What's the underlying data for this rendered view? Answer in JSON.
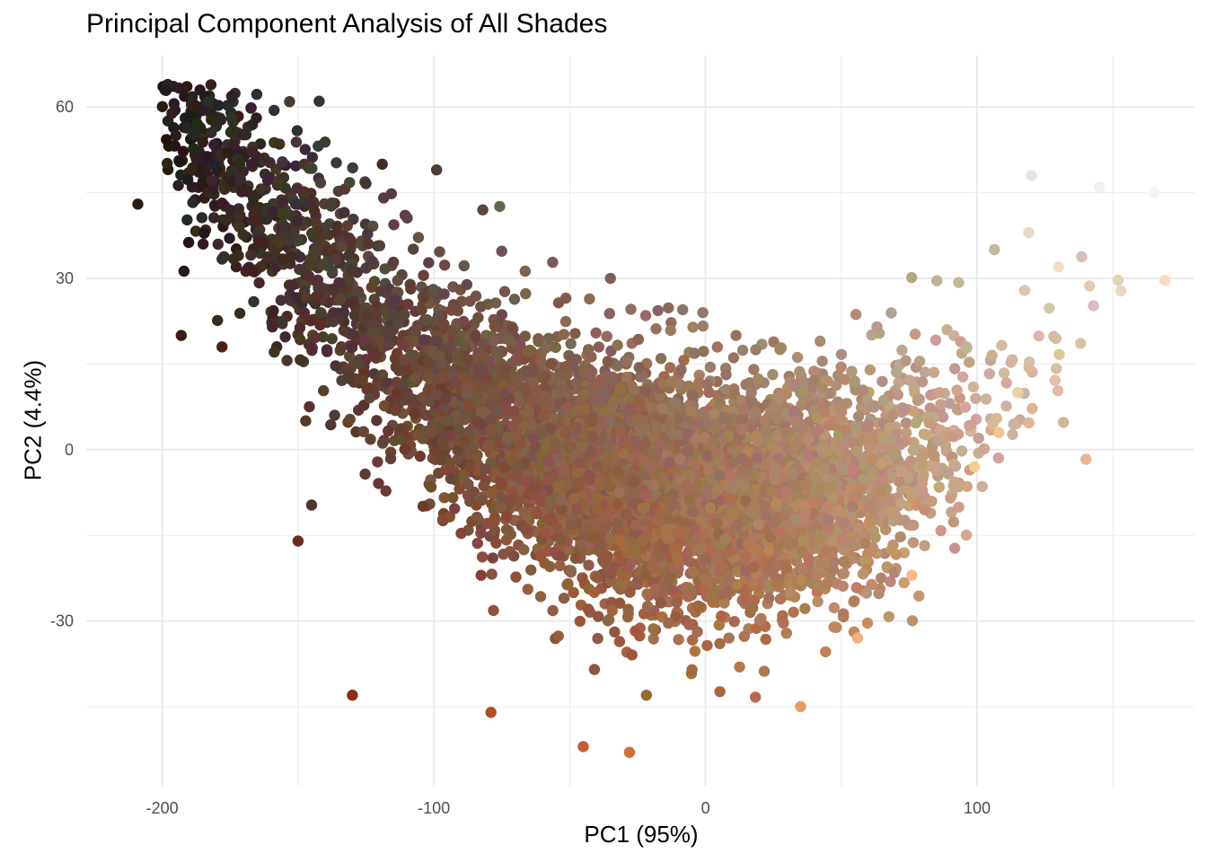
{
  "chart_data": {
    "type": "scatter",
    "title": "Principal Component Analysis of All Shades",
    "xlabel": "PC1 (95%)",
    "ylabel": "PC2 (4.4%)",
    "xlim": [
      -228,
      180
    ],
    "ylim": [
      -59,
      69
    ],
    "x_ticks": [
      -200,
      -100,
      0,
      100
    ],
    "x_tick_labels": [
      "-200",
      "-100",
      "0",
      "100"
    ],
    "y_ticks": [
      -30,
      0,
      30,
      60
    ],
    "y_tick_labels": [
      "-30",
      "0",
      "30",
      "60"
    ],
    "grid": true,
    "legend": "none",
    "point_count_estimate": 7000,
    "representative_points": [
      {
        "x": -199,
        "y": 63,
        "color": "#221b19"
      },
      {
        "x": -209,
        "y": 43,
        "color": "#2a1d18"
      },
      {
        "x": -195,
        "y": 55,
        "color": "#2b1c17"
      },
      {
        "x": -176,
        "y": 52,
        "color": "#2e1e18"
      },
      {
        "x": -119,
        "y": 50,
        "color": "#3f2d26"
      },
      {
        "x": -99,
        "y": 49,
        "color": "#4c3b37"
      },
      {
        "x": -82,
        "y": 42,
        "color": "#5e4540"
      },
      {
        "x": -35,
        "y": 30,
        "color": "#7d6055"
      },
      {
        "x": -1,
        "y": 24,
        "color": "#917868"
      },
      {
        "x": 120,
        "y": 48,
        "color": "#e9e3dc"
      },
      {
        "x": 145,
        "y": 46,
        "color": "#f3eeea"
      },
      {
        "x": 165,
        "y": 45,
        "color": "#f7f3ef"
      },
      {
        "x": 119,
        "y": 38,
        "color": "#e8d8c9"
      },
      {
        "x": 130,
        "y": 32,
        "color": "#f4dcc0"
      },
      {
        "x": 115,
        "y": 10,
        "color": "#f2cca5"
      },
      {
        "x": 108,
        "y": 3,
        "color": "#f5c58f"
      },
      {
        "x": 99,
        "y": -3,
        "color": "#f6cb94"
      },
      {
        "x": 76,
        "y": -22,
        "color": "#f6b98c"
      },
      {
        "x": 56,
        "y": -33,
        "color": "#f2b07f"
      },
      {
        "x": 35,
        "y": -45,
        "color": "#e79b63"
      },
      {
        "x": -28,
        "y": -53,
        "color": "#cf6f3b"
      },
      {
        "x": -45,
        "y": -52,
        "color": "#c35f30"
      },
      {
        "x": -79,
        "y": -46,
        "color": "#b14e26"
      },
      {
        "x": -130,
        "y": -43,
        "color": "#8c2d17"
      },
      {
        "x": -150,
        "y": -16,
        "color": "#6e2a19"
      },
      {
        "x": -178,
        "y": 18,
        "color": "#4f2116"
      },
      {
        "x": -193,
        "y": 20,
        "color": "#3a1c15"
      }
    ]
  }
}
